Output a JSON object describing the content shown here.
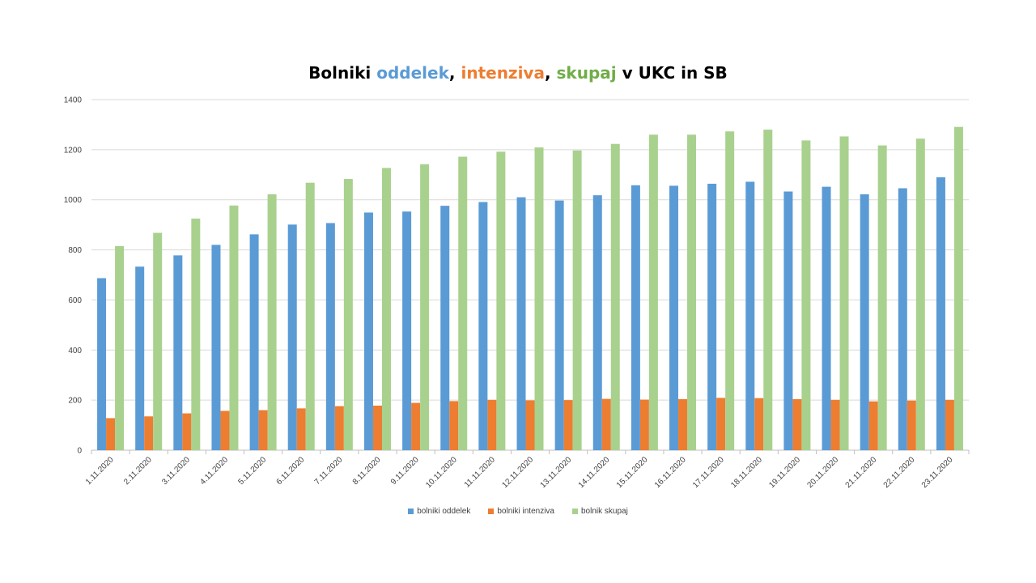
{
  "chart_data": {
    "type": "bar",
    "title_parts": [
      {
        "text": "Bolniki ",
        "color": "#000000"
      },
      {
        "text": "oddelek",
        "color": "#5b9bd5"
      },
      {
        "text": ", ",
        "color": "#000000"
      },
      {
        "text": "intenziva",
        "color": "#ed7d31"
      },
      {
        "text": ", ",
        "color": "#000000"
      },
      {
        "text": "skupaj",
        "color": "#70ad47"
      },
      {
        "text": " v UKC in SB",
        "color": "#000000"
      }
    ],
    "categories": [
      "1.11.2020",
      "2.11.2020",
      "3.11.2020",
      "4.11.2020",
      "5.11.2020",
      "6.11.2020",
      "7.11.2020",
      "8.11.2020",
      "9.11.2020",
      "10.11.2020",
      "11.11.2020",
      "12.11.2020",
      "13.11.2020",
      "14.11.2020",
      "15.11.2020",
      "16.11.2020",
      "17.11.2020",
      "18.11.2020",
      "19.11.2020",
      "20.11.2020",
      "21.11.2020",
      "22.11.2020",
      "23.11.2020"
    ],
    "series": [
      {
        "name": "bolniki oddelek",
        "color": "#5b9bd5",
        "values": [
          687,
          733,
          778,
          820,
          862,
          901,
          907,
          949,
          953,
          976,
          991,
          1010,
          997,
          1018,
          1058,
          1056,
          1064,
          1072,
          1033,
          1052,
          1022,
          1046,
          1090
        ]
      },
      {
        "name": "bolniki intenziva",
        "color": "#ed7d31",
        "values": [
          128,
          135,
          147,
          157,
          160,
          167,
          176,
          178,
          189,
          196,
          201,
          199,
          200,
          205,
          202,
          204,
          209,
          208,
          204,
          201,
          195,
          198,
          201
        ]
      },
      {
        "name": "bolnik skupaj",
        "color": "#a9d18e",
        "values": [
          815,
          868,
          925,
          977,
          1022,
          1068,
          1083,
          1127,
          1142,
          1172,
          1192,
          1209,
          1197,
          1223,
          1260,
          1260,
          1273,
          1280,
          1237,
          1253,
          1217,
          1244,
          1291
        ]
      }
    ],
    "yticks": [
      "0",
      "200",
      "400",
      "600",
      "800",
      "1000",
      "1200",
      "1400"
    ],
    "ylim": [
      0,
      1400
    ],
    "grid": true,
    "legend_position": "bottom"
  }
}
